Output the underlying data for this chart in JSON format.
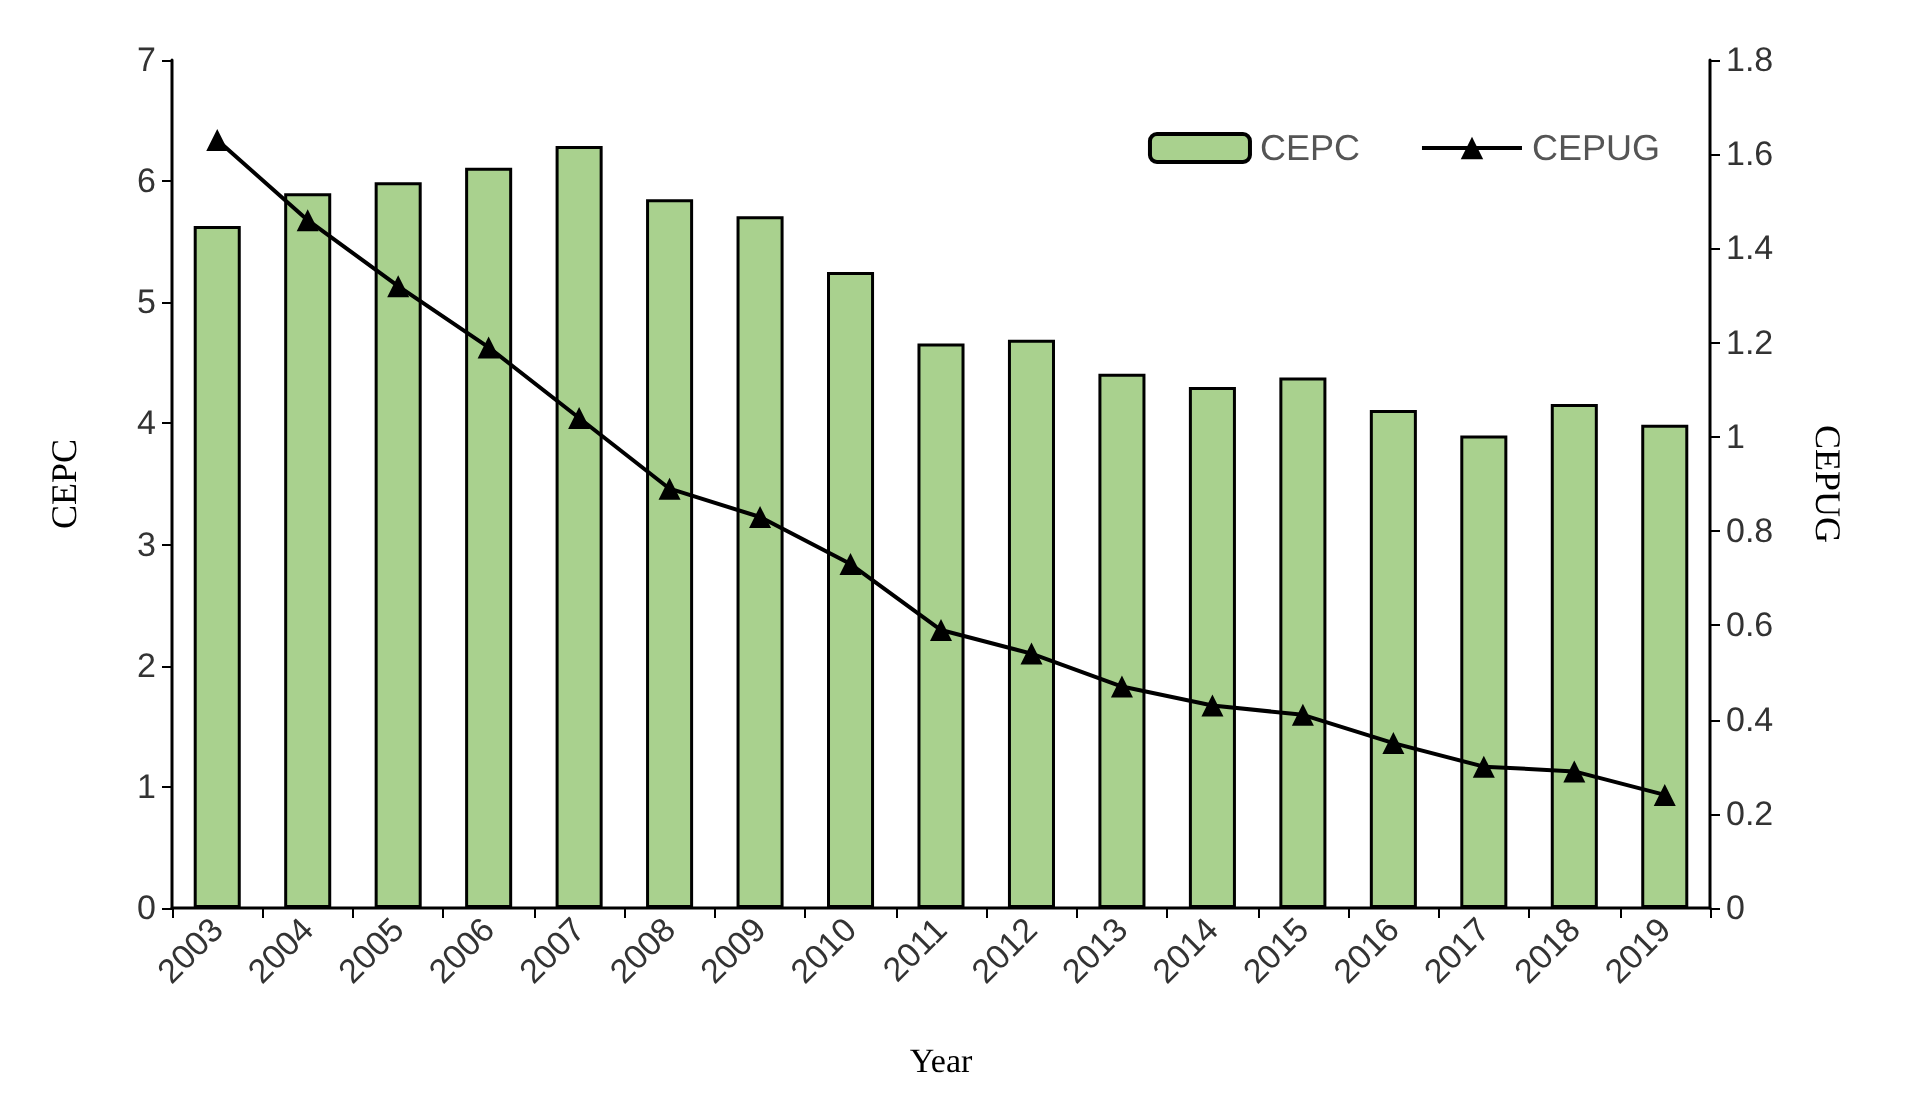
{
  "chart_data": {
    "type": "bar",
    "xlabel": "Year",
    "ylabel": "CEPC",
    "y2label": "CEPUG",
    "categories": [
      "2003",
      "2004",
      "2005",
      "2006",
      "2007",
      "2008",
      "2009",
      "2010",
      "2011",
      "2012",
      "2013",
      "2014",
      "2015",
      "2016",
      "2017",
      "2018",
      "2019"
    ],
    "series": [
      {
        "name": "CEPC",
        "color": "#a9d18e",
        "values": [
          5.63,
          5.9,
          5.99,
          6.11,
          6.29,
          5.85,
          5.71,
          5.25,
          4.66,
          4.69,
          4.41,
          4.3,
          4.38,
          4.11,
          3.9,
          4.16,
          3.99
        ]
      },
      {
        "name": "CEPUG",
        "type": "line",
        "axis": "y2",
        "color": "#000000",
        "marker": "triangle",
        "values": [
          1.63,
          1.46,
          1.32,
          1.19,
          1.04,
          0.89,
          0.83,
          0.73,
          0.59,
          0.54,
          0.47,
          0.43,
          0.41,
          0.35,
          0.3,
          0.29,
          0.24
        ]
      }
    ],
    "ylim": [
      0,
      7
    ],
    "yticks": [
      0,
      1,
      2,
      3,
      4,
      5,
      6,
      7
    ],
    "y2lim": [
      0,
      1.8
    ],
    "y2ticks": [
      0,
      0.2,
      0.4,
      0.6,
      0.8,
      1,
      1.2,
      1.4,
      1.6,
      1.8
    ],
    "grid": false,
    "legend": "top right",
    "line_style": "solid"
  }
}
